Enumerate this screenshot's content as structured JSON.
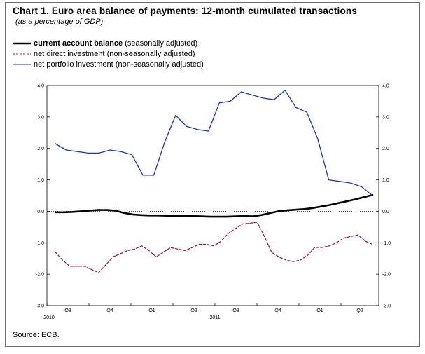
{
  "title": "Chart 1. Euro area balance of payments: 12-month cumulated transactions",
  "subtitle": "(as a percentage of GDP)",
  "source": "Source: ECB.",
  "legend": [
    {
      "name": "current account balance",
      "note": "(seasonally adjusted)",
      "color": "#000000",
      "style": "solid-thick"
    },
    {
      "name": "net direct investment",
      "note": "(non-seasonally adjusted)",
      "color": "#a0203c",
      "style": "dashed"
    },
    {
      "name": "net portfolio investment",
      "note": "(non-seasonally adjusted)",
      "color": "#2135b0",
      "style": "solid"
    }
  ],
  "chart_data": {
    "type": "line",
    "ylim": [
      -3.0,
      4.0
    ],
    "yticks": [
      "4.0",
      "3.0",
      "2.0",
      "1.0",
      "0.0",
      "-1.0",
      "-2.0",
      "-3.0"
    ],
    "yticks_right": [
      "4.0",
      "3.0",
      "2.0",
      "1.0",
      "0.0",
      "-1.0",
      "-2.0",
      "-3.0"
    ],
    "x_period_labels": [
      "Q3",
      "Q4",
      "Q1",
      "Q2",
      "Q3",
      "Q4",
      "Q1",
      "Q2"
    ],
    "x_year_labels": [
      "2010",
      "2011"
    ],
    "zero_line": "dotted",
    "grid": false,
    "series": [
      {
        "name": "current account balance",
        "color": "#000000",
        "values": [
          -0.03,
          -0.03,
          -0.02,
          0.0,
          0.02,
          0.04,
          0.04,
          0.02,
          -0.05,
          -0.1,
          -0.12,
          -0.13,
          -0.13,
          -0.14,
          -0.14,
          -0.15,
          -0.15,
          -0.16,
          -0.17,
          -0.17,
          -0.17,
          -0.16,
          -0.15,
          -0.16,
          -0.12,
          -0.06,
          0.0,
          0.03,
          0.05,
          0.07,
          0.1,
          0.15,
          0.2,
          0.26,
          0.32,
          0.38,
          0.45,
          0.52
        ]
      },
      {
        "name": "net direct investment",
        "color": "#a0203c",
        "values": [
          -1.3,
          -1.55,
          -1.75,
          -1.75,
          -1.75,
          -1.85,
          -1.95,
          -1.7,
          -1.45,
          -1.35,
          -1.25,
          -1.2,
          -1.1,
          -1.25,
          -1.45,
          -1.3,
          -1.15,
          -1.2,
          -1.25,
          -1.15,
          -1.05,
          -1.05,
          -1.1,
          -0.95,
          -0.7,
          -0.55,
          -0.4,
          -0.38,
          -0.35,
          -0.8,
          -1.3,
          -1.45,
          -1.55,
          -1.6,
          -1.55,
          -1.4,
          -1.15,
          -1.15,
          -1.1,
          -1.0,
          -0.85,
          -0.8,
          -0.75,
          -0.95,
          -1.05
        ]
      },
      {
        "name": "net portfolio investment",
        "color": "#2135b0",
        "values": [
          2.15,
          1.95,
          1.9,
          1.85,
          1.85,
          1.95,
          1.9,
          1.8,
          1.15,
          1.15,
          2.2,
          3.05,
          2.7,
          2.6,
          2.55,
          3.45,
          3.5,
          3.8,
          3.7,
          3.6,
          3.55,
          3.85,
          3.3,
          3.15,
          2.3,
          1.0,
          0.95,
          0.9,
          0.78,
          0.5
        ]
      }
    ]
  }
}
